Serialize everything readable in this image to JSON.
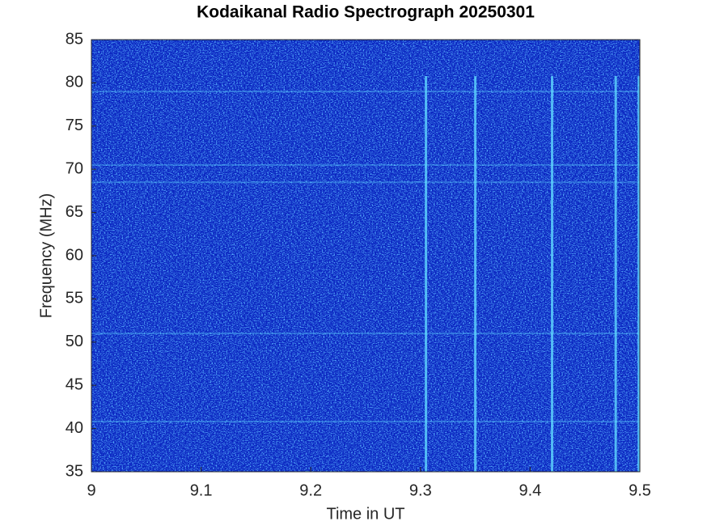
{
  "chart_data": {
    "type": "spectrogram",
    "title": "Kodaikanal Radio Spectrograph  20250301",
    "xlabel": "Time in UT",
    "ylabel": "Frequency (MHz)",
    "xlim": [
      9,
      9.5
    ],
    "xticks": [
      9,
      9.1,
      9.2,
      9.3,
      9.4,
      9.5
    ],
    "ylim": [
      35,
      85
    ],
    "yticks": [
      35,
      40,
      45,
      50,
      55,
      60,
      65,
      70,
      75,
      80,
      85
    ],
    "background": "#0a24c0",
    "burst_color": "#5fd8ff",
    "vertical_bursts": [
      9.305,
      9.35,
      9.42,
      9.478,
      9.499
    ],
    "horizontal_bands": [
      40.8,
      51,
      68.5,
      70.5,
      79
    ]
  }
}
